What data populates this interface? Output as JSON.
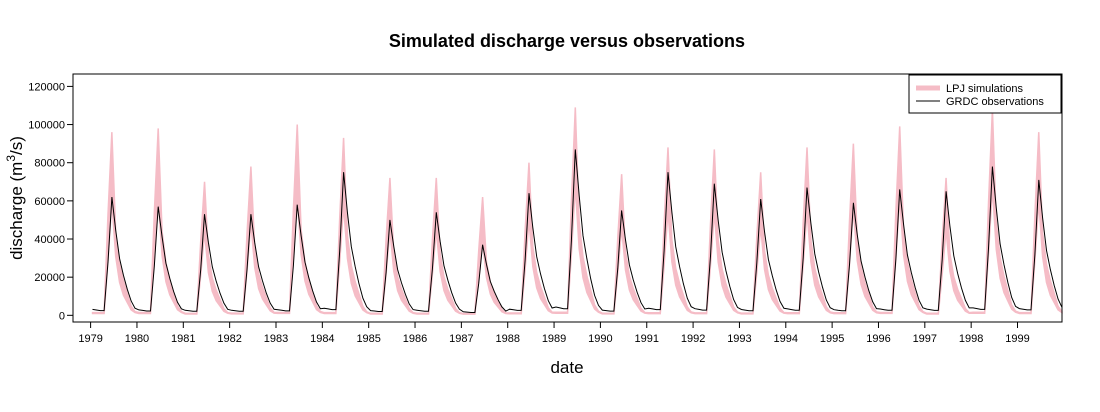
{
  "chart_data": {
    "type": "line",
    "title": "Simulated discharge versus observations",
    "xlabel": "date",
    "ylabel": "discharge (m",
    "ylabel_superscript": "3",
    "ylabel_suffix": "/s)",
    "xlim": [
      1978.62,
      1999.96
    ],
    "ylim": [
      -3500,
      126500
    ],
    "x_ticks": [
      1979,
      1980,
      1981,
      1982,
      1983,
      1984,
      1985,
      1986,
      1987,
      1988,
      1989,
      1990,
      1991,
      1992,
      1993,
      1994,
      1995,
      1996,
      1997,
      1998,
      1999
    ],
    "x_tick_labels": [
      "1979",
      "1980",
      "1981",
      "1982",
      "1983",
      "1984",
      "1985",
      "1986",
      "1987",
      "1988",
      "1989",
      "1990",
      "1991",
      "1992",
      "1993",
      "1994",
      "1995",
      "1996",
      "1997",
      "1998",
      "1999"
    ],
    "y_ticks": [
      0,
      20000,
      40000,
      60000,
      80000,
      100000,
      120000
    ],
    "y_tick_labels": [
      "0",
      "20000",
      "40000",
      "60000",
      "80000",
      "100000",
      "120000"
    ],
    "legend": {
      "position": "top-right",
      "entries": [
        {
          "label": "LPJ simulations",
          "color": "#f5bcc6",
          "style": "band"
        },
        {
          "label": "GRDC observations",
          "color": "#000000",
          "style": "line"
        }
      ]
    },
    "annual_peaks": {
      "years": [
        1979,
        1980,
        1981,
        1982,
        1983,
        1984,
        1985,
        1986,
        1987,
        1988,
        1989,
        1990,
        1991,
        1992,
        1993,
        1994,
        1995,
        1996,
        1997,
        1998,
        1999
      ],
      "grdc_observations": [
        62000,
        57000,
        53000,
        53000,
        58000,
        75000,
        50000,
        54000,
        37000,
        64000,
        87000,
        55000,
        75000,
        69000,
        61000,
        67000,
        59000,
        66000,
        65000,
        78000,
        71000
      ],
      "lpj_simulations_max": [
        96000,
        98000,
        70000,
        78000,
        100000,
        93000,
        72000,
        72000,
        62000,
        80000,
        109000,
        74000,
        88000,
        87000,
        75000,
        88000,
        90000,
        99000,
        72000,
        108000,
        96000
      ]
    },
    "colors": {
      "simulation_band": "#f5bcc6",
      "observation_line": "#000000"
    }
  }
}
